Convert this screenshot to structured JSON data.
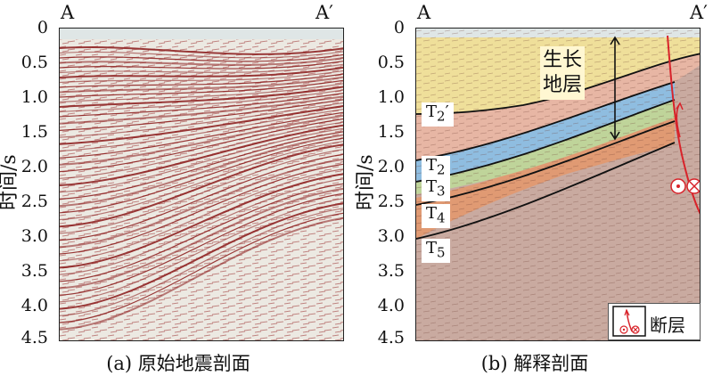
{
  "panel_a": {
    "left_label": "A",
    "right_label": "A′",
    "y_label": "时间/s",
    "y_ticks": [
      "0",
      "0.5",
      "1.0",
      "1.5",
      "2.0",
      "2.5",
      "3.0",
      "3.5",
      "4.0",
      "4.5"
    ],
    "caption": "(a) 原始地震剖面"
  },
  "panel_b": {
    "left_label": "A",
    "right_label": "A′",
    "y_label": "时间/s",
    "y_ticks": [
      "0",
      "0.5",
      "1.0",
      "1.5",
      "2.0",
      "2.5",
      "3.0",
      "3.5",
      "4.0",
      "4.5"
    ],
    "caption": "(b) 解释剖面",
    "growth_label_line1": "生长",
    "growth_label_line2": "地层",
    "horizons": [
      {
        "base": "T",
        "sub": "2",
        "suffix": "′"
      },
      {
        "base": "T",
        "sub": "2",
        "suffix": ""
      },
      {
        "base": "T",
        "sub": "3",
        "suffix": ""
      },
      {
        "base": "T",
        "sub": "4",
        "suffix": ""
      },
      {
        "base": "T",
        "sub": "5",
        "suffix": ""
      }
    ],
    "legend_label": "断层"
  },
  "colors": {
    "seismic_red": "#8b1a1a",
    "growth_strata": "#efdf9a",
    "t2p_t2_interval": "#e7b6a4",
    "t2_t3_interval": "#8fbde0",
    "t3_t4_interval": "#bfd49a",
    "t4_t5_interval": "#e09a73",
    "basement": "#c9aaa0",
    "fault_line": "#d8232a"
  }
}
